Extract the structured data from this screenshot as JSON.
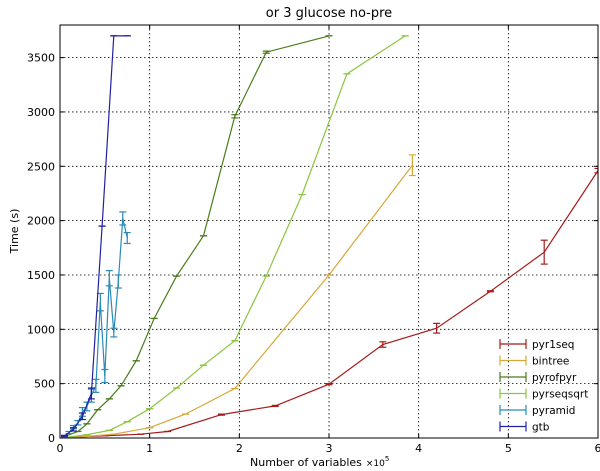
{
  "chart_data": {
    "type": "line",
    "title": "or 3 glucose no-pre",
    "xlabel": "Number of variables",
    "xlabel_multiplier": "×10",
    "xlabel_exponent": "5",
    "ylabel": "Time (s)",
    "xlim": [
      0,
      6
    ],
    "ylim": [
      0,
      3800
    ],
    "xticks": [
      0,
      1,
      2,
      3,
      4,
      5,
      6
    ],
    "yticks": [
      0,
      500,
      1000,
      1500,
      2000,
      2500,
      3000,
      3500
    ],
    "grid": true,
    "legend_position": "bottom-right",
    "series": [
      {
        "name": "pyr1seq",
        "color": "#a51c1c",
        "x": [
          0.05,
          0.2,
          0.5,
          0.9,
          1.2,
          1.8,
          2.4,
          3.0,
          3.6,
          4.2,
          4.8,
          5.4,
          6.0
        ],
        "y": [
          2,
          10,
          20,
          35,
          60,
          215,
          295,
          495,
          860,
          1010,
          1350,
          1710,
          2460
        ],
        "err": [
          0,
          0,
          0,
          0,
          0,
          5,
          5,
          5,
          25,
          45,
          5,
          110,
          20
        ]
      },
      {
        "name": "bintree",
        "color": "#d6a838",
        "x": [
          0.05,
          0.3,
          0.6,
          1.0,
          1.4,
          1.95,
          3.0,
          3.93
        ],
        "y": [
          2,
          15,
          35,
          95,
          220,
          455,
          1500,
          2510
        ],
        "err": [
          0,
          0,
          0,
          0,
          0,
          0,
          0,
          95
        ]
      },
      {
        "name": "pyrofpyr",
        "color": "#4a7c1a",
        "x": [
          0.05,
          0.2,
          0.3,
          0.42,
          0.55,
          0.68,
          0.85,
          1.05,
          1.3,
          1.6,
          1.95,
          2.3,
          3.0
        ],
        "y": [
          15,
          60,
          130,
          260,
          360,
          480,
          710,
          1100,
          1490,
          1860,
          2960,
          3550,
          3700
        ],
        "err": [
          0,
          0,
          0,
          0,
          0,
          0,
          0,
          0,
          0,
          0,
          15,
          10,
          0
        ]
      },
      {
        "name": "pyrseqsqrt",
        "color": "#8cc540",
        "x": [
          0.05,
          0.3,
          0.55,
          0.75,
          1.0,
          1.3,
          1.6,
          1.95,
          2.3,
          2.7,
          3.2,
          3.85
        ],
        "y": [
          5,
          30,
          70,
          150,
          270,
          460,
          670,
          895,
          1490,
          2240,
          3350,
          3700
        ],
        "err": [
          0,
          0,
          0,
          0,
          0,
          0,
          0,
          0,
          0,
          0,
          0,
          0
        ]
      },
      {
        "name": "pyramid",
        "color": "#2a8ab6",
        "x": [
          0.05,
          0.1,
          0.15,
          0.2,
          0.25,
          0.3,
          0.35,
          0.4,
          0.45,
          0.5,
          0.55,
          0.6,
          0.65,
          0.7,
          0.75
        ],
        "y": [
          15,
          50,
          100,
          140,
          240,
          290,
          390,
          480,
          1250,
          570,
          1470,
          970,
          1440,
          2020,
          1840
        ],
        "err": [
          5,
          10,
          15,
          20,
          40,
          40,
          60,
          60,
          80,
          60,
          70,
          40,
          60,
          60,
          50
        ]
      },
      {
        "name": "gtb",
        "color": "#2222a0",
        "x": [
          0.05,
          0.15,
          0.25,
          0.35,
          0.47,
          0.6,
          0.75
        ],
        "y": [
          20,
          80,
          200,
          410,
          1950,
          3700,
          3700
        ],
        "err": [
          5,
          15,
          30,
          50,
          0,
          0,
          0
        ]
      }
    ]
  }
}
